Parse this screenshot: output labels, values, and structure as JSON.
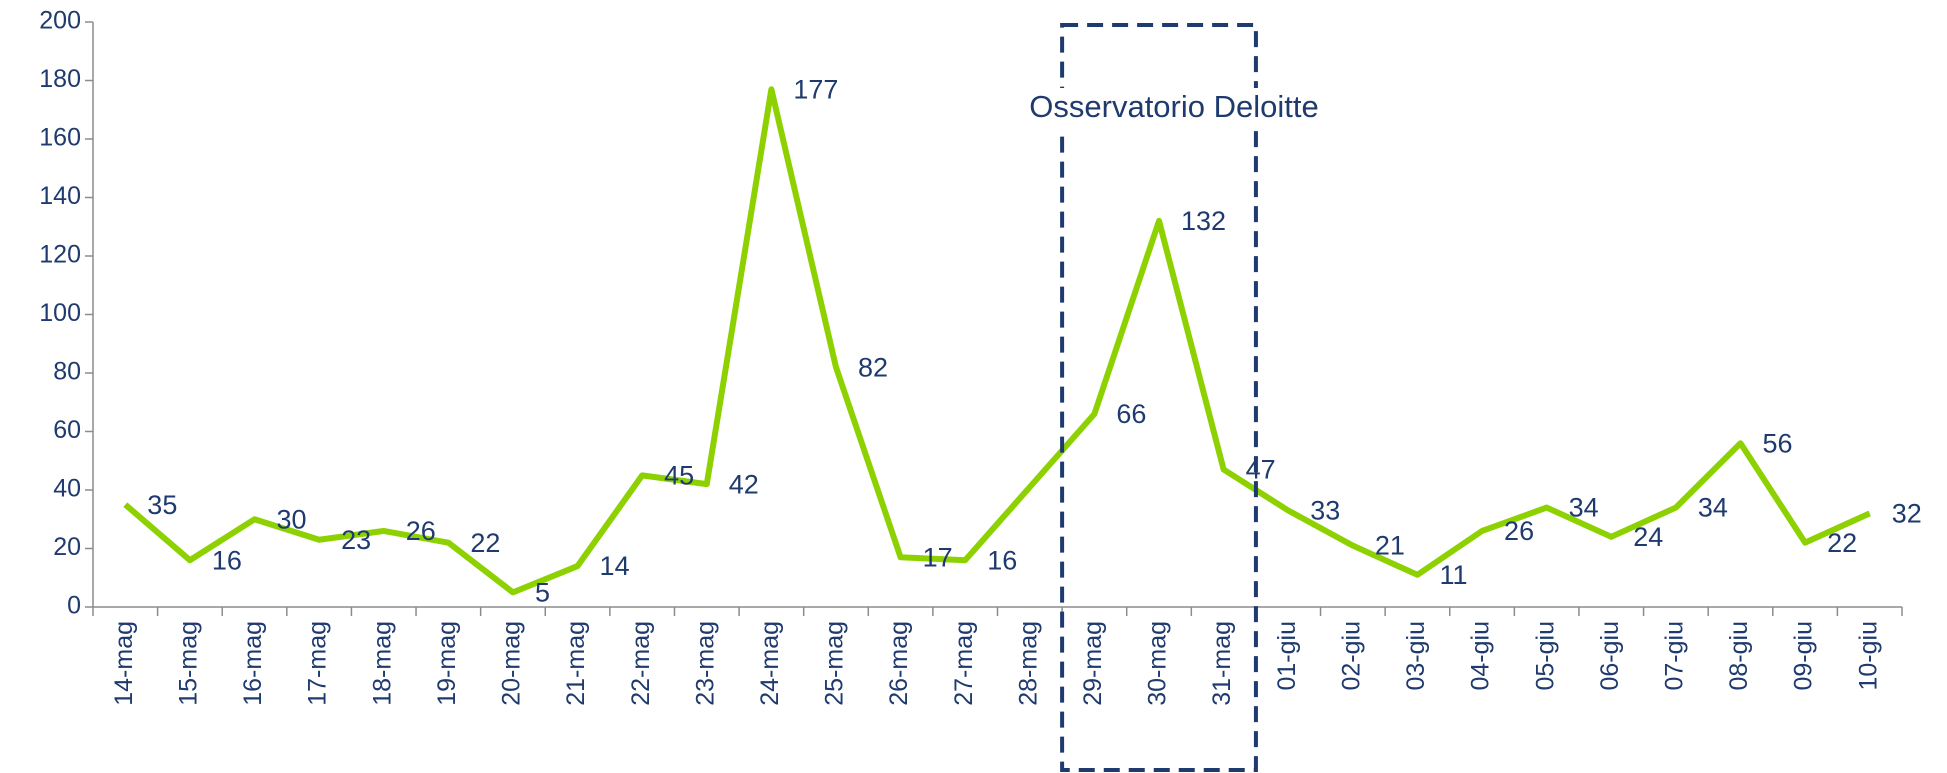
{
  "chart_data": {
    "type": "line",
    "categories": [
      "14-mag",
      "15-mag",
      "16-mag",
      "17-mag",
      "18-mag",
      "19-mag",
      "20-mag",
      "21-mag",
      "22-mag",
      "23-mag",
      "24-mag",
      "25-mag",
      "26-mag",
      "27-mag",
      "28-mag",
      "29-mag",
      "30-mag",
      "31-mag",
      "01-giu",
      "02-giu",
      "03-giu",
      "04-giu",
      "05-giu",
      "06-giu",
      "07-giu",
      "08-giu",
      "09-giu",
      "10-giu"
    ],
    "values": [
      35,
      16,
      30,
      23,
      26,
      22,
      5,
      14,
      45,
      42,
      177,
      82,
      17,
      16,
      41,
      66,
      132,
      47,
      33,
      21,
      11,
      26,
      34,
      24,
      34,
      56,
      22,
      32
    ],
    "value_labels": [
      "35",
      "16",
      "30",
      "23",
      "26",
      "22",
      "5",
      "14",
      "45",
      "42",
      "177",
      "82",
      "17",
      "16",
      null,
      "66",
      "132",
      "47",
      "33",
      "21",
      "11",
      "26",
      "34",
      "24",
      "34",
      "56",
      "22",
      "32"
    ],
    "color": "#8ed100",
    "ylim": [
      0,
      200
    ],
    "yticks": [
      0,
      20,
      40,
      60,
      80,
      100,
      120,
      140,
      160,
      180,
      200
    ],
    "annotation": {
      "text": "Osservatorio Deloitte",
      "from": "29-mag",
      "to": "31-mag",
      "color": "#1f3a6e"
    }
  }
}
